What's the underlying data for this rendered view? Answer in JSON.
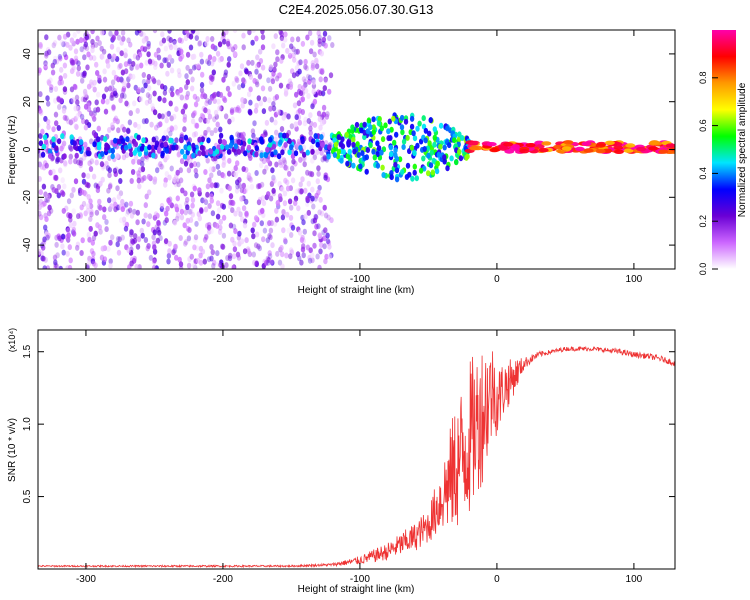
{
  "figure": {
    "title": "C2E4.2025.056.07.30.G13"
  },
  "chart_data": [
    {
      "type": "heatmap",
      "xlabel": "Height of straight line (km)",
      "ylabel": "Frequency (Hz)",
      "xlim": [
        -335,
        130
      ],
      "ylim": [
        -50,
        50
      ],
      "x_ticks": [
        -300,
        -200,
        -100,
        0,
        100
      ],
      "y_ticks": [
        -40,
        -20,
        0,
        20,
        40
      ],
      "colorbar": {
        "label": "Normalized spectral amplitude",
        "range": [
          0,
          1
        ],
        "ticks": [
          0.0,
          0.2,
          0.4,
          0.6,
          0.8
        ],
        "tick_labels": [
          "0.0",
          "0.2",
          "0.4",
          "0.6",
          "0.8"
        ],
        "colormap": [
          "#ffffff",
          "#cc66ff",
          "#6a00d5",
          "#0000ff",
          "#00e5ff",
          "#00ff00",
          "#ffff00",
          "#ff9900",
          "#ff0000",
          "#ff00aa"
        ]
      },
      "features": [
        {
          "x_range": [
            -335,
            -120
          ],
          "freq_range": [
            -50,
            50
          ],
          "level": 0.15
        },
        {
          "x_range": [
            -335,
            -120
          ],
          "freq_range": [
            -3,
            6
          ],
          "level": 0.3
        },
        {
          "x_range": [
            -120,
            -20
          ],
          "freq_range": [
            -15,
            12
          ],
          "level": 0.45
        },
        {
          "x_range": [
            -20,
            130
          ],
          "freq_range": [
            -1,
            3
          ],
          "level": 0.9
        }
      ]
    },
    {
      "type": "line",
      "xlabel": "Height of straight line (km)",
      "ylabel": "SNR (10 * v/v)",
      "scale_label": "(x10⁴)",
      "xlim": [
        -335,
        130
      ],
      "ylim": [
        0,
        1.65
      ],
      "x_ticks": [
        -300,
        -200,
        -100,
        0,
        100
      ],
      "y_ticks": [
        0.5,
        1.0,
        1.5
      ],
      "y_tick_labels": [
        "0.5",
        "1.0",
        "1.5"
      ],
      "color": "#ee3333",
      "x": [
        -335,
        -300,
        -250,
        -200,
        -150,
        -120,
        -100,
        -80,
        -60,
        -50,
        -45,
        -40,
        -35,
        -30,
        -25,
        -20,
        -15,
        -10,
        -5,
        -2,
        0,
        5,
        10,
        15,
        20,
        30,
        40,
        50,
        60,
        70,
        80,
        90,
        100,
        110,
        120,
        130
      ],
      "y": [
        0.02,
        0.02,
        0.02,
        0.02,
        0.02,
        0.03,
        0.06,
        0.12,
        0.22,
        0.3,
        0.4,
        0.5,
        0.6,
        0.7,
        0.8,
        0.9,
        1.0,
        1.1,
        1.2,
        1.25,
        1.15,
        1.25,
        1.3,
        1.36,
        1.42,
        1.48,
        1.5,
        1.52,
        1.52,
        1.52,
        1.51,
        1.5,
        1.48,
        1.47,
        1.45,
        1.42
      ],
      "noise_amplitude": [
        0.005,
        0.005,
        0.006,
        0.006,
        0.006,
        0.01,
        0.03,
        0.06,
        0.1,
        0.12,
        0.18,
        0.25,
        0.35,
        0.45,
        0.5,
        0.55,
        0.5,
        0.5,
        0.4,
        0.3,
        0.25,
        0.2,
        0.15,
        0.1,
        0.04,
        0.02,
        0.015,
        0.015,
        0.015,
        0.015,
        0.015,
        0.02,
        0.02,
        0.02,
        0.02,
        0.02
      ]
    }
  ]
}
